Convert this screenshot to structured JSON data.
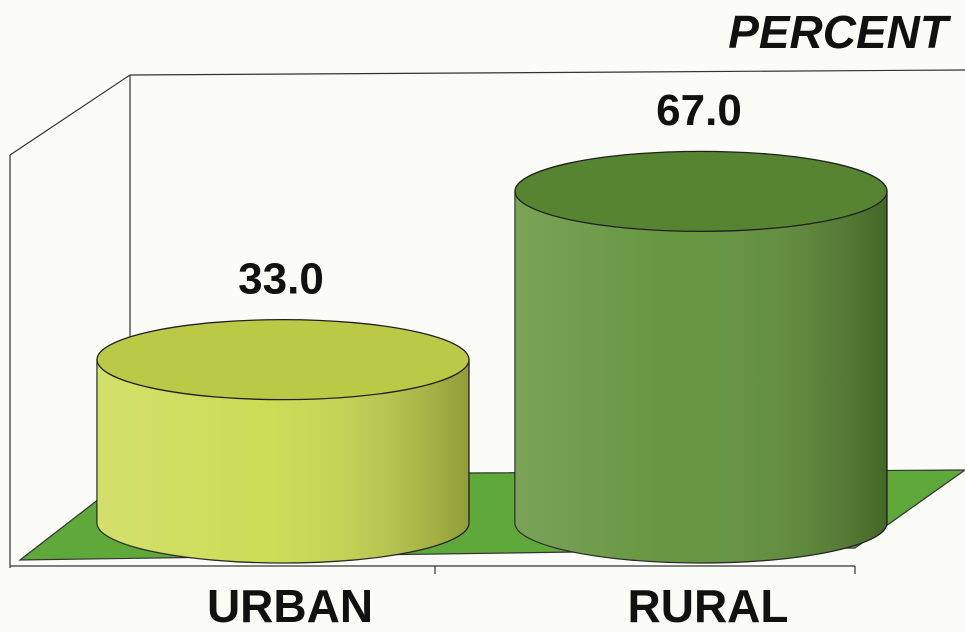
{
  "chart_data": {
    "type": "bar",
    "title": "PERCENT",
    "categories": [
      "URBAN",
      "RURAL"
    ],
    "values": [
      33,
      67
    ],
    "value_labels": [
      "33.0",
      "67.0"
    ],
    "colors": [
      "#c9da4c",
      "#5d8f34"
    ]
  }
}
